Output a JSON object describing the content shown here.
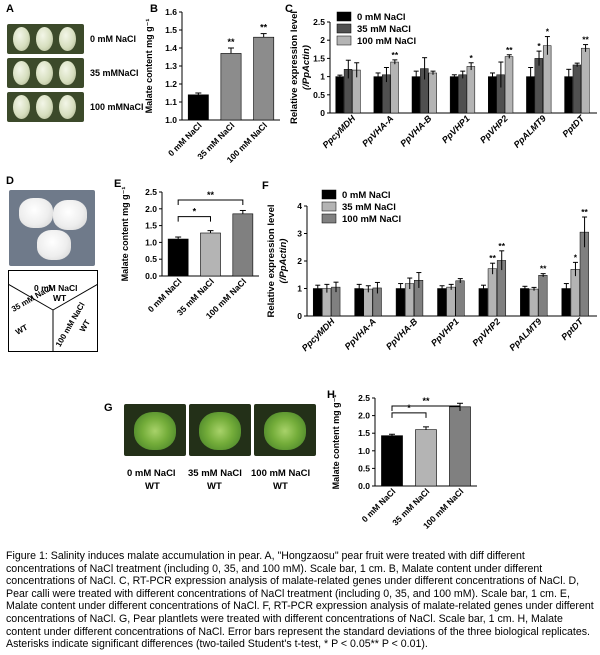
{
  "panels": {
    "A": {
      "letter": "A",
      "labels": [
        "0 mM NaCl",
        "35 mMNaCl",
        "100 mMNaCl"
      ]
    },
    "B": {
      "letter": "B"
    },
    "C": {
      "letter": "C"
    },
    "D": {
      "letter": "D",
      "sectors": [
        [
          "0 mM NaCl",
          "WT"
        ],
        [
          "35 mM NaCl",
          "WT"
        ],
        [
          "100 mM NaCl",
          "WT"
        ]
      ]
    },
    "E": {
      "letter": "E"
    },
    "F": {
      "letter": "F"
    },
    "G": {
      "letter": "G",
      "labels": [
        [
          "0 mM NaCl",
          "WT"
        ],
        [
          "35 mM NaCl",
          "WT"
        ],
        [
          "100 mM NaCl",
          "WT"
        ]
      ]
    },
    "H": {
      "letter": "H"
    }
  },
  "colors": {
    "black": "#000000",
    "gray": "#a6a6a6",
    "lightgray": "#c8c8c8",
    "darkgray": "#7f7f7f"
  },
  "caption": "Figure 1: Salinity induces malate accumulation in pear. A, \"Hongzaosu\" pear fruit were treated with diff different concentrations of NaCl treatment (including 0, 35, and 100 mM). Scale bar, 1 cm. B, Malate content under different concentrations of NaCl. C, RT-PCR expression analysis of malate-related genes under different concentrations of NaCl. D, Pear calli were treated with different concentrations of NaCl treatment (including 0, 35, and 100 mM). Scale bar, 1 cm. E, Malate content under different concentrations of NaCl. F, RT-PCR expression analysis of malate-related genes under different concentrations of NaCl. G, Pear plantlets were treated with different concentrations of NaCl. Scale bar, 1 cm. H, Malate content under different concentrations of NaCl. Error bars represent the standard deviations of the three biological replicates. Asterisks indicate significant differences (two-tailed Student's t-test, * P < 0.05** P < 0.01).",
  "chart_data": [
    {
      "id": "B",
      "type": "bar",
      "ylabel": "Malate content mg g⁻¹",
      "categories": [
        "0 mM NaCl",
        "35 mM NaCl",
        "100 mM NaCl"
      ],
      "values": [
        1.14,
        1.37,
        1.46
      ],
      "errors": [
        0.01,
        0.03,
        0.02
      ],
      "sig": [
        "",
        "**",
        "**"
      ],
      "ylim": [
        1.0,
        1.6
      ],
      "yticks": [
        "1.0",
        "1.1",
        "1.2",
        "1.3",
        "1.4",
        "1.5",
        "1.6"
      ],
      "colors": [
        "#000000",
        "#8c8c8c",
        "#8c8c8c"
      ]
    },
    {
      "id": "C",
      "type": "bar",
      "ylabel": "Relative expression level",
      "ylabel2": "(/PpActin)",
      "categories": [
        "PpcyMDH",
        "PpVHA-A",
        "PpVHA-B",
        "PpVHP1",
        "PpVHP2",
        "PpALMT9",
        "PptDT"
      ],
      "series": [
        {
          "name": "0 mM NaCl",
          "values": [
            1.0,
            1.0,
            1.0,
            1.0,
            1.0,
            1.0,
            1.0
          ],
          "errors": [
            0.04,
            0.1,
            0.15,
            0.05,
            0.1,
            0.25,
            0.2
          ],
          "sig": [
            "",
            "",
            "",
            "",
            "",
            "",
            ""
          ]
        },
        {
          "name": "35 mM NaCl",
          "values": [
            1.2,
            1.05,
            1.22,
            1.05,
            1.05,
            1.5,
            1.32
          ],
          "errors": [
            0.25,
            0.2,
            0.3,
            0.1,
            0.35,
            0.2,
            0.05
          ],
          "sig": [
            "",
            "",
            "",
            "",
            "",
            "*",
            ""
          ]
        },
        {
          "name": "100 mM NaCl",
          "values": [
            1.18,
            1.4,
            1.1,
            1.28,
            1.55,
            1.85,
            1.78
          ],
          "errors": [
            0.2,
            0.06,
            0.05,
            0.1,
            0.05,
            0.25,
            0.1
          ],
          "sig": [
            "",
            "**",
            "",
            "*",
            "**",
            "*",
            "**"
          ]
        }
      ],
      "colors": [
        "#000000",
        "#505050",
        "#b4b4b4"
      ],
      "ylim": [
        0,
        2.5
      ],
      "yticks": [
        "0",
        "0.5",
        "1",
        "1.5",
        "2",
        "2.5"
      ]
    },
    {
      "id": "E",
      "type": "bar",
      "ylabel": "Malate content mg g⁻¹",
      "categories": [
        "0 mM NaCl",
        "35 mM NaCl",
        "100 mM NaCl"
      ],
      "values": [
        1.1,
        1.28,
        1.85
      ],
      "errors": [
        0.06,
        0.07,
        0.1
      ],
      "brackets": [
        {
          "from": 0,
          "to": 1,
          "label": "*"
        },
        {
          "from": 0,
          "to": 2,
          "label": "**"
        }
      ],
      "ylim": [
        0,
        2.5
      ],
      "yticks": [
        "0.0",
        "0.5",
        "1.0",
        "1.5",
        "2.0",
        "2.5"
      ],
      "colors": [
        "#000000",
        "#b4b4b4",
        "#808080"
      ]
    },
    {
      "id": "F",
      "type": "bar",
      "ylabel": "Relative expression level",
      "ylabel2": "(/PpActin)",
      "categories": [
        "PpcyMDH",
        "PpVHA-A",
        "PpVHA-B",
        "PpVHP1",
        "PpVHP2",
        "PpALMT9",
        "PptDT"
      ],
      "series": [
        {
          "name": "0 mM NaCl",
          "values": [
            1.0,
            1.0,
            1.0,
            1.0,
            1.0,
            1.0,
            1.0
          ],
          "errors": [
            0.12,
            0.15,
            0.18,
            0.1,
            0.12,
            0.08,
            0.18
          ],
          "sig": [
            "",
            "",
            "",
            "",
            "",
            "",
            ""
          ]
        },
        {
          "name": "35 mM NaCl",
          "values": [
            1.0,
            0.98,
            1.18,
            1.05,
            1.72,
            0.98,
            1.7
          ],
          "errors": [
            0.15,
            0.12,
            0.2,
            0.1,
            0.2,
            0.06,
            0.25
          ],
          "sig": [
            "",
            "",
            "",
            "",
            "**",
            "",
            "*"
          ]
        },
        {
          "name": "100 mM NaCl",
          "values": [
            1.05,
            1.02,
            1.3,
            1.28,
            2.02,
            1.48,
            3.05
          ],
          "errors": [
            0.18,
            0.2,
            0.28,
            0.08,
            0.35,
            0.06,
            0.55
          ],
          "sig": [
            "",
            "",
            "",
            "",
            "**",
            "**",
            "**"
          ]
        }
      ],
      "colors": [
        "#000000",
        "#b4b4b4",
        "#808080"
      ],
      "ylim": [
        0,
        4
      ],
      "yticks": [
        "0",
        "1",
        "2",
        "3",
        "4"
      ]
    },
    {
      "id": "H",
      "type": "bar",
      "ylabel": "Malate content mg g⁻¹",
      "categories": [
        "0 mM NaCl",
        "35 mM NaCl",
        "100 mM NaCl"
      ],
      "values": [
        1.43,
        1.6,
        2.25
      ],
      "errors": [
        0.04,
        0.08,
        0.1
      ],
      "brackets": [
        {
          "from": 0,
          "to": 1,
          "label": "*"
        },
        {
          "from": 0,
          "to": 2,
          "label": "**"
        }
      ],
      "ylim": [
        0,
        2.5
      ],
      "yticks": [
        "0.0",
        "0.5",
        "1.0",
        "1.5",
        "2.0",
        "2.5"
      ],
      "colors": [
        "#000000",
        "#b4b4b4",
        "#808080"
      ]
    }
  ]
}
